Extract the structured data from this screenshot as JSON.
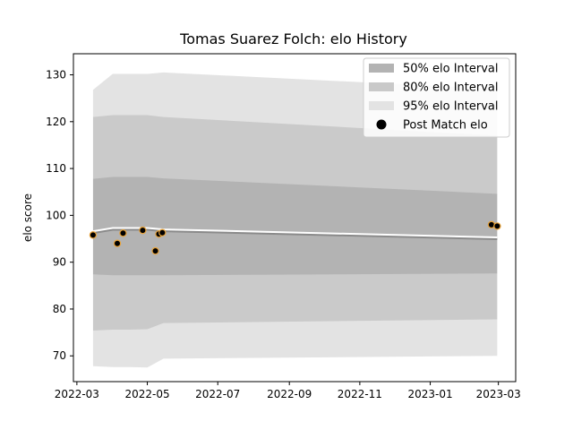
{
  "chart_data": {
    "type": "area",
    "title": "Tomas Suarez Folch: elo History",
    "xlabel": "",
    "ylabel": "elo score",
    "x_ticks": [
      "2022-03",
      "2022-05",
      "2022-07",
      "2022-09",
      "2022-11",
      "2023-01",
      "2023-03"
    ],
    "y_ticks": [
      70,
      80,
      90,
      100,
      110,
      120,
      130
    ],
    "xlim": [
      "2022-02-26",
      "2023-03-16"
    ],
    "ylim": [
      64.5,
      134.5
    ],
    "legend_position": "top-right",
    "legend": [
      {
        "label": "50% elo Interval",
        "color": "#b0b0b0"
      },
      {
        "label": "80% elo Interval",
        "color": "#c9c9c9"
      },
      {
        "label": "95% elo Interval",
        "color": "#e3e3e3"
      },
      {
        "label": "Post Match elo",
        "color": "#000000"
      }
    ],
    "bands": {
      "x": [
        "2022-03-15",
        "2022-04-01",
        "2022-04-15",
        "2022-05-01",
        "2022-05-15",
        "2023-02-28"
      ],
      "i95_upper": [
        126.8,
        130.2,
        130.2,
        130.2,
        130.5,
        127.0
      ],
      "i95_lower": [
        67.8,
        67.6,
        67.6,
        67.5,
        69.4,
        70.0
      ],
      "i80_upper": [
        121.0,
        121.4,
        121.4,
        121.4,
        121.0,
        117.0
      ],
      "i80_lower": [
        75.4,
        75.6,
        75.6,
        75.7,
        77.0,
        77.8
      ],
      "i50_upper": [
        107.8,
        108.2,
        108.2,
        108.2,
        107.9,
        104.6
      ],
      "i50_lower": [
        87.4,
        87.2,
        87.2,
        87.2,
        87.2,
        87.6
      ]
    },
    "line": {
      "name": "elo",
      "x": [
        "2022-03-15",
        "2022-04-01",
        "2022-04-15",
        "2022-05-01",
        "2022-05-15",
        "2023-02-28"
      ],
      "y": [
        96.6,
        97.3,
        97.3,
        97.3,
        97.0,
        95.3
      ],
      "color": "#ffffff"
    },
    "points": {
      "name": "Post Match elo",
      "x": [
        "2022-03-15",
        "2022-04-05",
        "2022-04-10",
        "2022-04-27",
        "2022-05-08",
        "2022-05-11",
        "2022-05-14",
        "2023-02-23",
        "2023-02-28"
      ],
      "y": [
        95.8,
        94.0,
        96.2,
        96.8,
        92.4,
        96.0,
        96.3,
        98.0,
        97.7
      ],
      "fill": "#000000",
      "edge": "#e8a33a"
    }
  }
}
